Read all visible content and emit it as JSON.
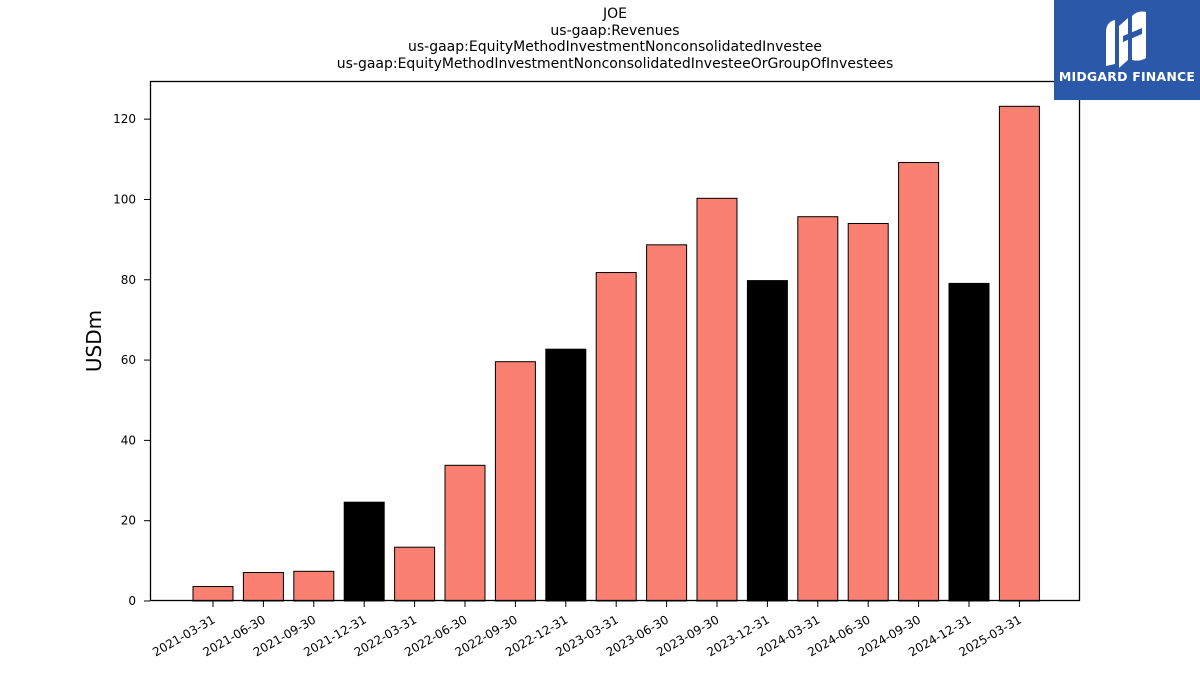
{
  "chart_data": {
    "type": "bar",
    "title_lines": [
      "JOE",
      "us-gaap:Revenues",
      "us-gaap:EquityMethodInvestmentNonconsolidatedInvestee",
      "us-gaap:EquityMethodInvestmentNonconsolidatedInvesteeOrGroupOfInvestees"
    ],
    "ylabel": "USDm",
    "xlabel": "",
    "ylim": [
      0,
      129.5
    ],
    "yticks": [
      0,
      20,
      40,
      60,
      80,
      100,
      120
    ],
    "categories": [
      "2021-03-31",
      "2021-06-30",
      "2021-09-30",
      "2021-12-31",
      "2022-03-31",
      "2022-06-30",
      "2022-09-30",
      "2022-12-31",
      "2023-03-31",
      "2023-06-30",
      "2023-09-30",
      "2023-12-31",
      "2024-03-31",
      "2024-06-30",
      "2024-09-30",
      "2024-12-31",
      "2025-03-31"
    ],
    "values": [
      3.6,
      7.1,
      7.4,
      24.6,
      13.4,
      33.8,
      59.6,
      62.7,
      81.8,
      88.7,
      100.3,
      79.8,
      95.7,
      94.0,
      109.2,
      79.1,
      123.2
    ],
    "bar_colors": [
      "#fa8072",
      "#fa8072",
      "#fa8072",
      "#000000",
      "#fa8072",
      "#fa8072",
      "#fa8072",
      "#000000",
      "#fa8072",
      "#fa8072",
      "#fa8072",
      "#000000",
      "#fa8072",
      "#fa8072",
      "#fa8072",
      "#000000",
      "#fa8072"
    ],
    "grid": false
  },
  "logo": {
    "text": "MIDGARD FINANCE",
    "background": "#2b58a8",
    "icon": "midgard-logo-icon"
  }
}
